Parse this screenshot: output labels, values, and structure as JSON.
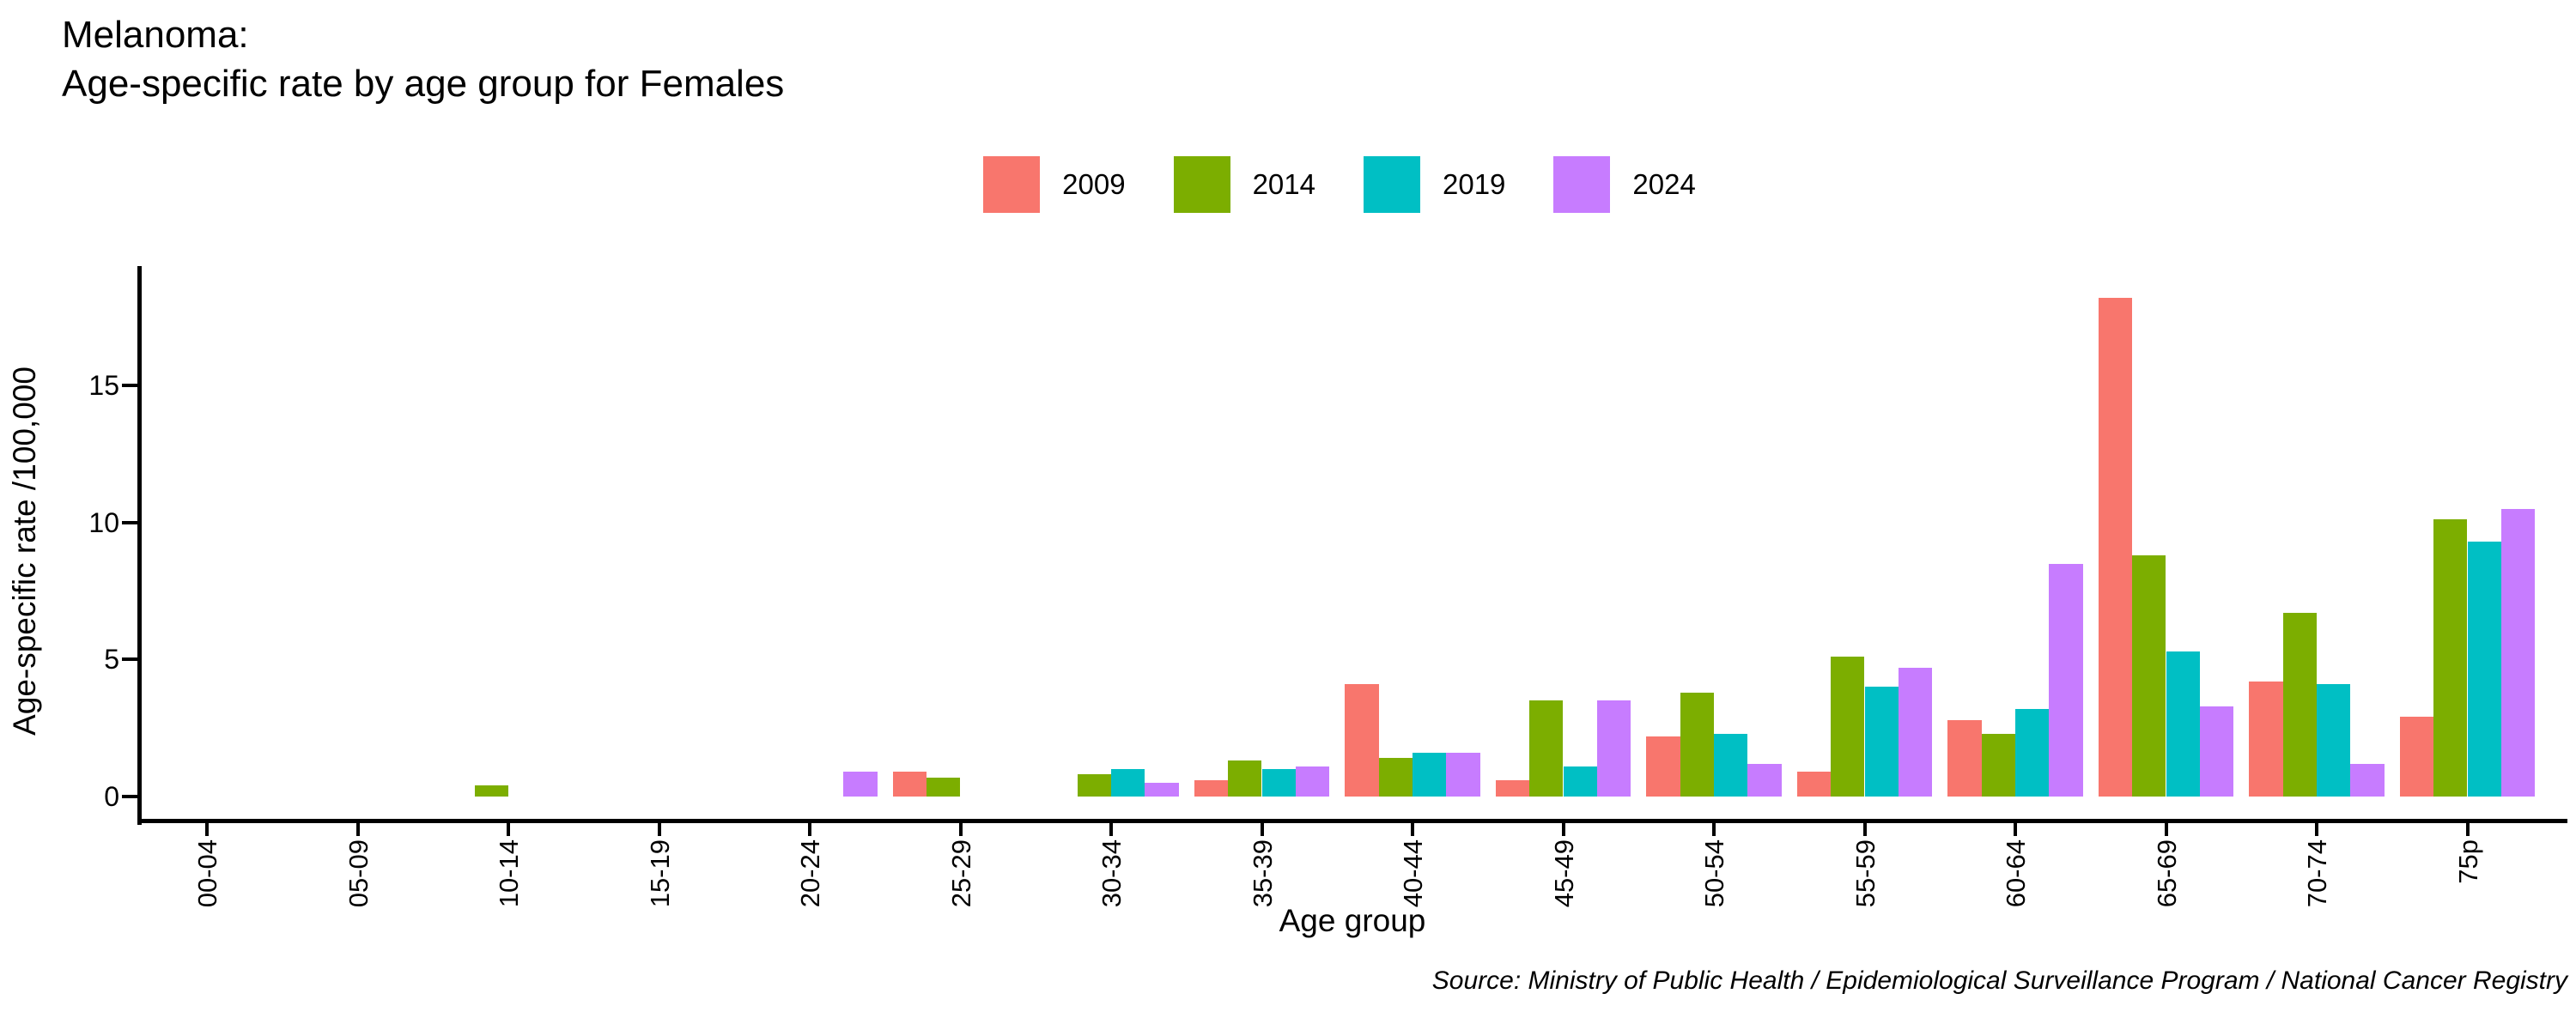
{
  "source": "Source: Ministry of Public Health / Epidemiological Surveillance Program / National Cancer Registry",
  "chart_data": {
    "type": "bar",
    "title_line1": "Melanoma:",
    "title_line2": "Age-specific rate by age group for Females",
    "xlabel": "Age group",
    "ylabel": "Age-specific rate /100,000",
    "categories": [
      "00-04",
      "05-09",
      "10-14",
      "15-19",
      "20-24",
      "25-29",
      "30-34",
      "35-39",
      "40-44",
      "45-49",
      "50-54",
      "55-59",
      "60-64",
      "65-69",
      "70-74",
      "75p"
    ],
    "series": [
      {
        "name": "2009",
        "color": "#F8766D",
        "values": [
          0,
          0,
          0,
          0,
          0,
          0.9,
          0,
          0.6,
          4.1,
          0.6,
          2.2,
          0.9,
          2.8,
          18.2,
          4.2,
          2.9
        ]
      },
      {
        "name": "2014",
        "color": "#7CAE00",
        "values": [
          0,
          0,
          0.4,
          0,
          0,
          0.7,
          0.8,
          1.3,
          1.4,
          3.5,
          3.8,
          5.1,
          2.3,
          8.8,
          6.7,
          10.1
        ]
      },
      {
        "name": "2019",
        "color": "#00BFC4",
        "values": [
          0,
          0,
          0,
          0,
          0,
          0,
          1.0,
          1.0,
          1.6,
          1.1,
          2.3,
          4.0,
          3.2,
          5.3,
          4.1,
          9.3
        ]
      },
      {
        "name": "2024",
        "color": "#C77CFF",
        "values": [
          0,
          0,
          0,
          0,
          0.9,
          0,
          0.5,
          1.1,
          1.6,
          3.5,
          1.2,
          4.7,
          8.5,
          3.3,
          1.2,
          10.5
        ]
      }
    ],
    "yticks": [
      0,
      5,
      10,
      15
    ],
    "ylim": [
      0,
      19.4
    ],
    "grid": false,
    "legend_position": "top",
    "axis_color": "#000000",
    "text_color": "#000000"
  }
}
